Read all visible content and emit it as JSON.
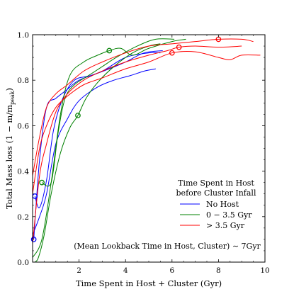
{
  "chart_data": {
    "type": "line",
    "title": "",
    "xlabel": "Time Spent in Host + Cluster (Gyr)",
    "ylabel_prefix": "Total Mass loss (1 − m/m",
    "ylabel_sub": "peak",
    "ylabel_suffix": ")",
    "xlim": [
      0,
      10
    ],
    "ylim": [
      0,
      1.0
    ],
    "xticks": [
      2,
      4,
      6,
      8,
      10
    ],
    "yticks": [
      0.0,
      0.2,
      0.4,
      0.6,
      0.8,
      1.0
    ],
    "xtick_labels": [
      "2",
      "4",
      "6",
      "8",
      "10"
    ],
    "ytick_labels": [
      "0.0",
      "0.2",
      "0.4",
      "0.6",
      "0.8",
      "1.0"
    ],
    "grid": false,
    "legend": {
      "placement": "center-right",
      "title_line1": "Time Spent in Host",
      "title_line2": "before Cluster Infall",
      "entries": [
        {
          "label": "No Host",
          "color": "#0000ff"
        },
        {
          "label": "0 − 3.5 Gyr",
          "color": "#008000"
        },
        {
          "label": "> 3.5 Gyr",
          "color": "#ff0000"
        }
      ]
    },
    "annotation": "(Mean Lookback Time in Host, Cluster) ∼ 7Gyr",
    "series": [
      {
        "color": "#0000ff",
        "marker": [
          0.05,
          0.1
        ],
        "points": [
          [
            0.05,
            0.1
          ],
          [
            0.3,
            0.45
          ],
          [
            0.6,
            0.68
          ],
          [
            1.0,
            0.72
          ],
          [
            1.5,
            0.76
          ],
          [
            2.0,
            0.8
          ],
          [
            3.0,
            0.84
          ],
          [
            4.0,
            0.9
          ],
          [
            5.0,
            0.92
          ],
          [
            5.5,
            0.92
          ]
        ]
      },
      {
        "color": "#0000ff",
        "marker": [
          0.1,
          0.29
        ],
        "points": [
          [
            0.1,
            0.29
          ],
          [
            0.3,
            0.24
          ],
          [
            0.6,
            0.36
          ],
          [
            0.9,
            0.58
          ],
          [
            1.3,
            0.72
          ],
          [
            1.8,
            0.8
          ],
          [
            2.5,
            0.82
          ],
          [
            3.3,
            0.85
          ],
          [
            4.0,
            0.88
          ],
          [
            4.8,
            0.92
          ],
          [
            5.6,
            0.93
          ]
        ]
      },
      {
        "color": "#0000ff",
        "marker": null,
        "points": [
          [
            0.0,
            0.12
          ],
          [
            0.3,
            0.2
          ],
          [
            0.6,
            0.3
          ],
          [
            1.0,
            0.52
          ],
          [
            1.5,
            0.63
          ],
          [
            2.0,
            0.71
          ],
          [
            2.8,
            0.77
          ],
          [
            3.5,
            0.8
          ],
          [
            4.2,
            0.82
          ],
          [
            4.8,
            0.84
          ],
          [
            5.3,
            0.85
          ]
        ]
      },
      {
        "color": "#008000",
        "marker": [
          1.95,
          0.645
        ],
        "points": [
          [
            0.1,
            0.0
          ],
          [
            0.25,
            0.02
          ],
          [
            0.5,
            0.12
          ],
          [
            0.8,
            0.3
          ],
          [
            1.2,
            0.48
          ],
          [
            1.6,
            0.59
          ],
          [
            1.95,
            0.645
          ],
          [
            2.3,
            0.72
          ],
          [
            2.8,
            0.79
          ],
          [
            3.5,
            0.86
          ],
          [
            4.3,
            0.92
          ],
          [
            5.0,
            0.95
          ],
          [
            5.5,
            0.96
          ]
        ]
      },
      {
        "color": "#008000",
        "marker": [
          0.4,
          0.35
        ],
        "points": [
          [
            0.4,
            0.35
          ],
          [
            0.8,
            0.35
          ],
          [
            1.1,
            0.57
          ],
          [
            1.4,
            0.72
          ],
          [
            1.8,
            0.78
          ],
          [
            2.4,
            0.82
          ],
          [
            3.0,
            0.86
          ],
          [
            3.6,
            0.9
          ],
          [
            4.5,
            0.95
          ],
          [
            5.3,
            0.98
          ],
          [
            6.1,
            0.98
          ]
        ]
      },
      {
        "color": "#008000",
        "marker": [
          3.3,
          0.93
        ],
        "points": [
          [
            0.0,
            0.02
          ],
          [
            0.4,
            0.1
          ],
          [
            0.8,
            0.35
          ],
          [
            1.2,
            0.65
          ],
          [
            1.6,
            0.82
          ],
          [
            2.2,
            0.88
          ],
          [
            2.8,
            0.91
          ],
          [
            3.3,
            0.93
          ],
          [
            3.8,
            0.94
          ],
          [
            4.3,
            0.91
          ],
          [
            5.0,
            0.94
          ],
          [
            6.0,
            0.97
          ],
          [
            6.6,
            0.98
          ]
        ]
      },
      {
        "color": "#ff0000",
        "marker": [
          8.0,
          0.98
        ],
        "points": [
          [
            0.0,
            0.38
          ],
          [
            0.3,
            0.55
          ],
          [
            0.6,
            0.68
          ],
          [
            1.0,
            0.74
          ],
          [
            1.5,
            0.78
          ],
          [
            2.2,
            0.84
          ],
          [
            3.0,
            0.88
          ],
          [
            4.0,
            0.92
          ],
          [
            5.0,
            0.95
          ],
          [
            6.0,
            0.96
          ],
          [
            7.0,
            0.97
          ],
          [
            8.0,
            0.98
          ],
          [
            9.0,
            0.98
          ],
          [
            9.5,
            0.97
          ]
        ]
      },
      {
        "color": "#ff0000",
        "marker": [
          6.3,
          0.945
        ],
        "points": [
          [
            0.0,
            0.08
          ],
          [
            0.3,
            0.38
          ],
          [
            0.6,
            0.52
          ],
          [
            1.0,
            0.66
          ],
          [
            1.5,
            0.74
          ],
          [
            2.2,
            0.8
          ],
          [
            3.0,
            0.84
          ],
          [
            4.0,
            0.88
          ],
          [
            5.0,
            0.91
          ],
          [
            5.8,
            0.93
          ],
          [
            6.3,
            0.945
          ],
          [
            7.0,
            0.95
          ],
          [
            8.0,
            0.945
          ],
          [
            9.0,
            0.95
          ]
        ]
      },
      {
        "color": "#ff0000",
        "marker": [
          6.0,
          0.92
        ],
        "points": [
          [
            0.0,
            0.3
          ],
          [
            0.3,
            0.5
          ],
          [
            0.6,
            0.6
          ],
          [
            1.0,
            0.68
          ],
          [
            1.5,
            0.73
          ],
          [
            2.2,
            0.78
          ],
          [
            3.0,
            0.81
          ],
          [
            4.0,
            0.85
          ],
          [
            5.0,
            0.88
          ],
          [
            6.0,
            0.92
          ],
          [
            7.0,
            0.925
          ],
          [
            8.0,
            0.9
          ],
          [
            8.5,
            0.89
          ],
          [
            9.0,
            0.91
          ],
          [
            9.8,
            0.91
          ]
        ]
      }
    ]
  }
}
